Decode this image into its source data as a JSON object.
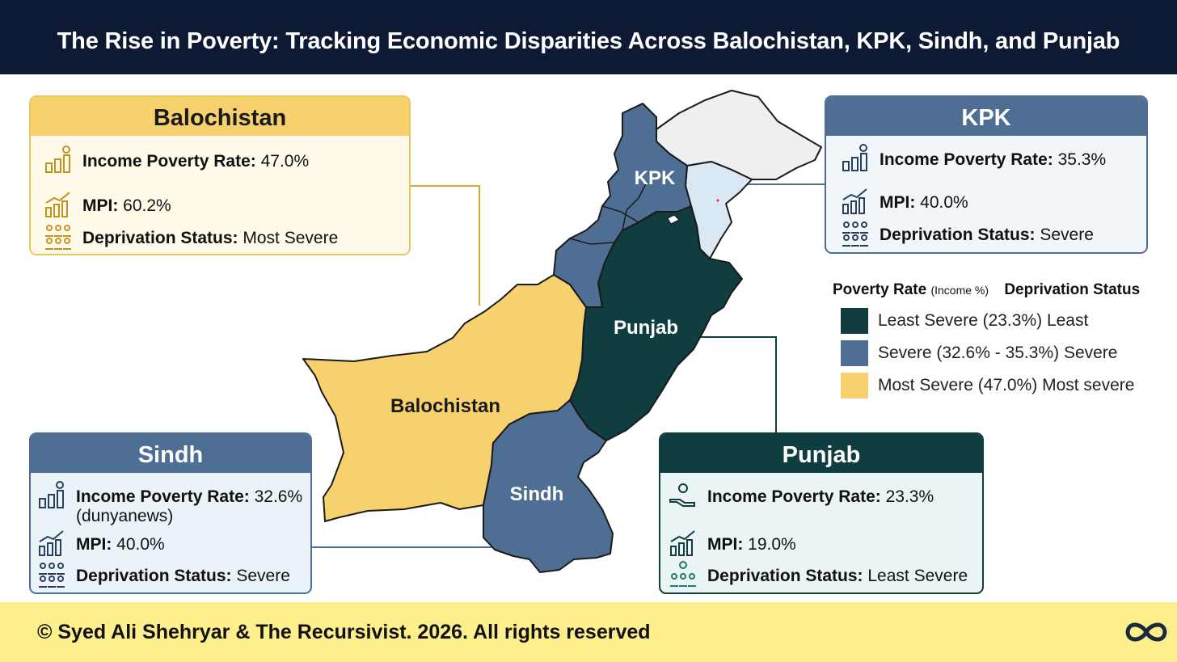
{
  "title": "The Rise in Poverty: Tracking Economic Disparities Across Balochistan, KPK, Sindh, and Punjab",
  "colors": {
    "header": "#0e1a33",
    "least_severe": "#0f3d40",
    "severe": "#4e6f93",
    "most_severe": "#f6d16e",
    "gilgit": "#efefef",
    "kashmir": "#d9e8f2",
    "footer": "#fdef8b"
  },
  "map": {
    "labels": {
      "kpk": "KPK",
      "punjab": "Punjab",
      "balochistan": "Balochistan",
      "sindh": "Sindh"
    }
  },
  "cards": {
    "balochistan": {
      "title": "Balochistan",
      "income_label": "Income Poverty Rate:",
      "income_value": "47.0%",
      "mpi_label": "MPI:",
      "mpi_value": "60.2%",
      "status_label": "Deprivation Status:",
      "status_value": "Most Severe",
      "icons": [
        "income-chart-icon",
        "mpi-chart-icon",
        "people-icon"
      ]
    },
    "kpk": {
      "title": "KPK",
      "income_label": "Income Poverty Rate:",
      "income_value": "35.3%",
      "mpi_label": "MPI:",
      "mpi_value": "40.0%",
      "status_label": "Deprivation Status:",
      "status_value": "Severe",
      "icons": [
        "income-chart-icon",
        "mpi-chart-icon",
        "people-icon"
      ]
    },
    "sindh": {
      "title": "Sindh",
      "income_label": "Income Poverty Rate:",
      "income_value": "32.6%",
      "income_note": "(dunyanews)",
      "mpi_label": "MPI:",
      "mpi_value": "40.0%",
      "status_label": "Deprivation Status:",
      "status_value": "Severe",
      "icons": [
        "income-chart-icon",
        "mpi-chart-icon",
        "people-icon"
      ]
    },
    "punjab": {
      "title": "Punjab",
      "income_label": "Income Poverty Rate:",
      "income_value": "23.3%",
      "mpi_label": "MPI:",
      "mpi_value": "19.0%",
      "status_label": "Deprivation Status:",
      "status_value": "Least Severe",
      "icons": [
        "hand-coin-icon",
        "mpi-chart-icon",
        "people-icon"
      ]
    }
  },
  "legend": {
    "header_rate": "Poverty Rate",
    "header_unit": "(Income %)",
    "header_status": "Deprivation Status",
    "items": [
      {
        "label": "Least Severe (23.3%)  Least",
        "color": "#0f3d40"
      },
      {
        "label": "Severe (32.6% - 35.3%)  Severe",
        "color": "#4e6f93"
      },
      {
        "label": "Most Severe (47.0%) Most severe",
        "color": "#f6d16e"
      }
    ]
  },
  "footer": {
    "copyright": "© Syed Ali Shehryar & The Recursivist. 2026. All rights reserved",
    "logo_icon": "infinity-logo-icon"
  }
}
